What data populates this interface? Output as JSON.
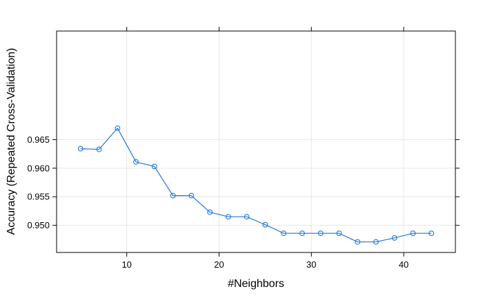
{
  "chart_data": {
    "type": "line",
    "title": "",
    "xlabel": "#Neighbors",
    "ylabel": "Accuracy (Repeated Cross-Validation)",
    "xlim": [
      2.4,
      45.6
    ],
    "ylim": [
      0.94525,
      0.984
    ],
    "xticks": [
      10,
      20,
      30,
      40
    ],
    "yticks": [
      0.95,
      0.955,
      0.96,
      0.965
    ],
    "xtick_labels": [
      "10",
      "20",
      "30",
      "40"
    ],
    "ytick_labels": [
      "0.950",
      "0.955",
      "0.960",
      "0.965"
    ],
    "grid": true,
    "legend": "none",
    "line_color": "#1F78D8",
    "grid_color": "#E6E6E6",
    "series": [
      {
        "x": [
          5,
          7,
          9,
          11,
          13,
          15,
          17,
          19,
          21,
          23,
          25,
          27,
          29,
          31,
          33,
          35,
          37,
          39,
          41,
          43
        ],
        "values": [
          0.9634,
          0.9633,
          0.967,
          0.9611,
          0.9603,
          0.9552,
          0.9552,
          0.9523,
          0.9515,
          0.9515,
          0.9501,
          0.9486,
          0.9486,
          0.9486,
          0.9486,
          0.9471,
          0.9471,
          0.9478,
          0.9486,
          0.9486
        ]
      }
    ]
  }
}
